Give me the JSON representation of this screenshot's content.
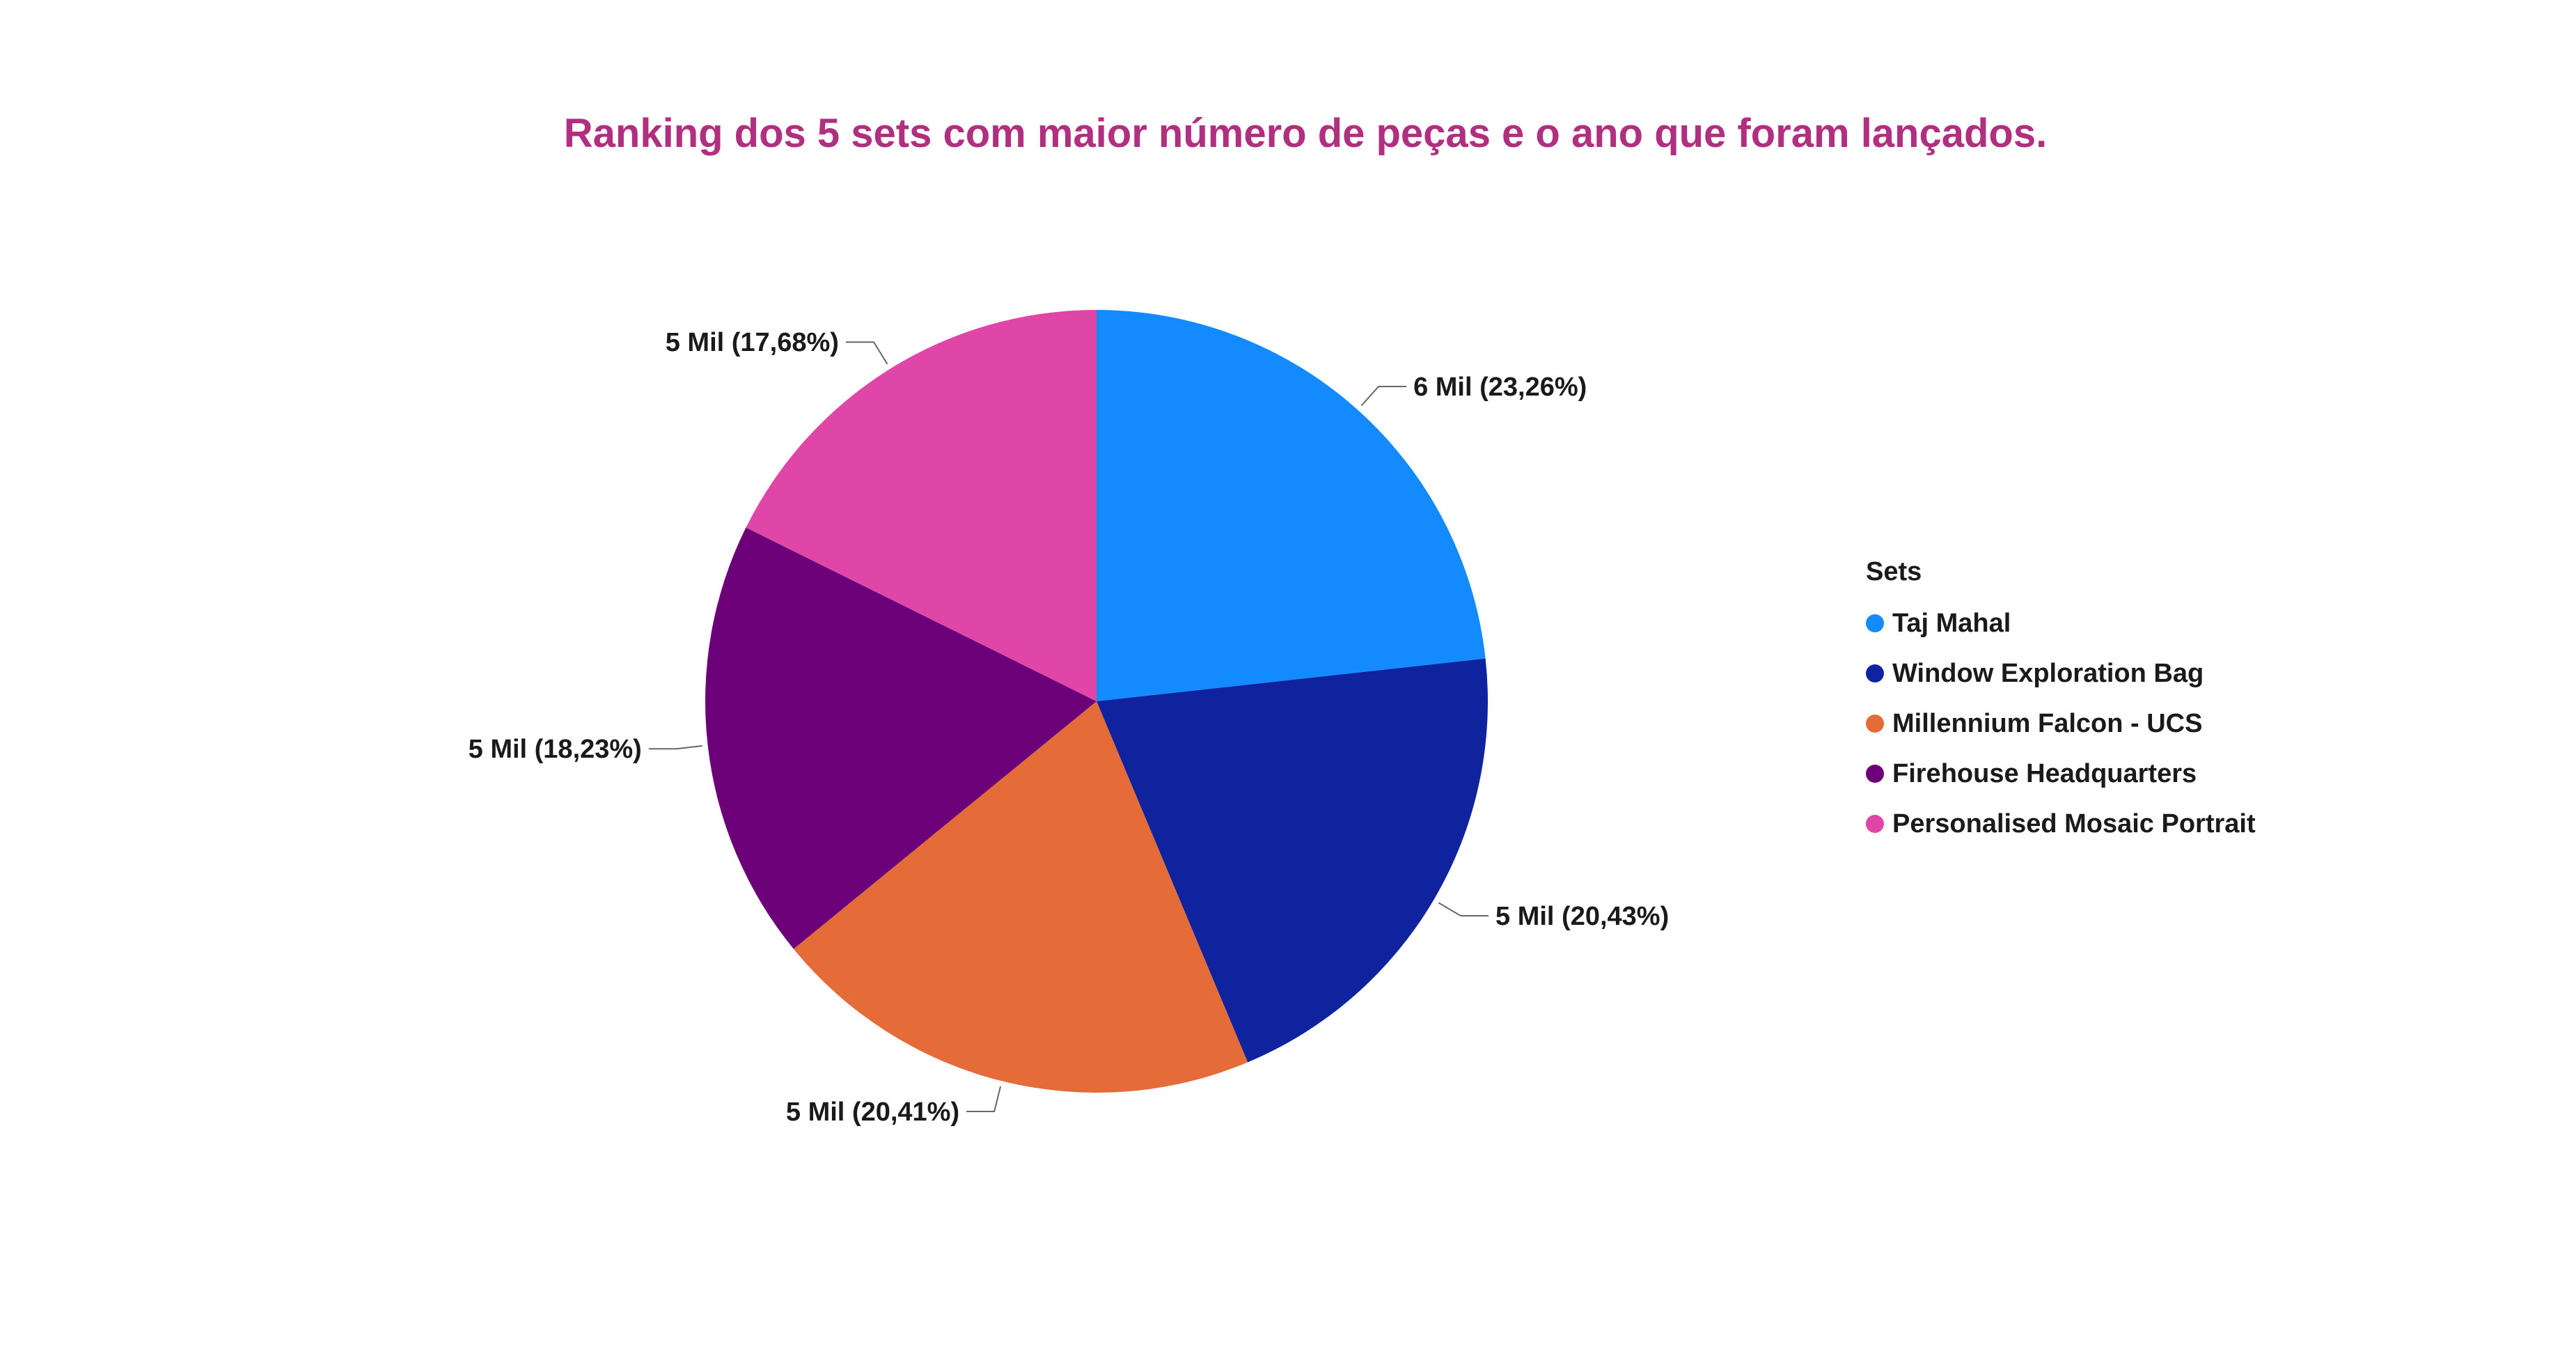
{
  "chart_data": {
    "type": "pie",
    "title": "Ranking dos 5 sets com maior número de peças e o ano que foram lançados.",
    "legend_title": "Sets",
    "legend_position": "right",
    "slices": [
      {
        "name": "Taj Mahal",
        "value": 6,
        "percent": 23.26,
        "label": "6 Mil (23,26%)",
        "color": "#138bff"
      },
      {
        "name": "Window Exploration Bag",
        "value": 5,
        "percent": 20.43,
        "label": "5 Mil (20,43%)",
        "color": "#10239e"
      },
      {
        "name": "Millennium Falcon - UCS",
        "value": 5,
        "percent": 20.41,
        "label": "5 Mil (20,41%)",
        "color": "#e56b38"
      },
      {
        "name": "Firehouse Headquarters",
        "value": 5,
        "percent": 18.23,
        "label": "5 Mil (18,23%)",
        "color": "#6b0078"
      },
      {
        "name": "Personalised Mosaic Portrait",
        "value": 5,
        "percent": 17.68,
        "label": "5 Mil (17,68%)",
        "color": "#e046a8"
      }
    ]
  }
}
